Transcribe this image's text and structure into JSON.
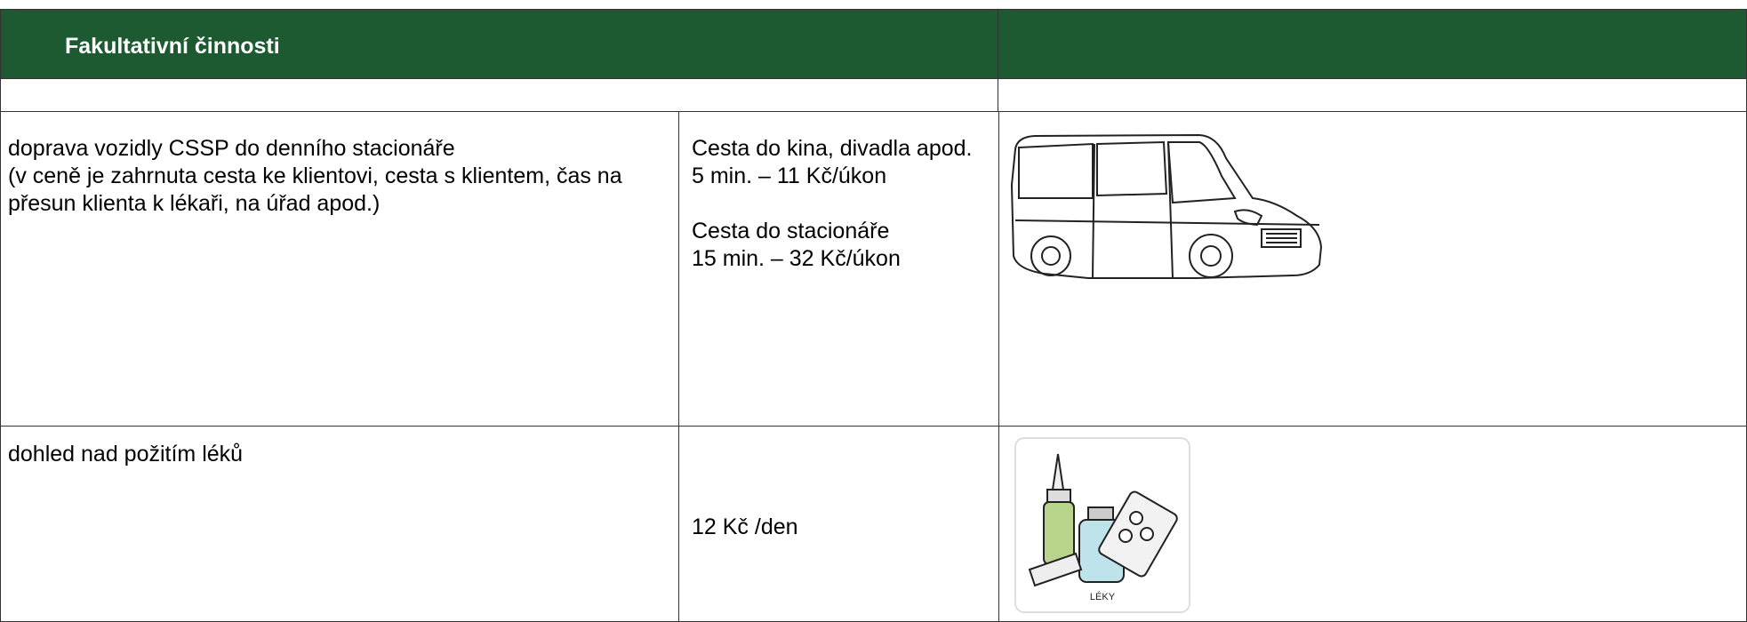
{
  "header": {
    "title": "Fakultativní činnosti"
  },
  "rows": [
    {
      "activity": [
        "doprava vozidly CSSP do denního stacionáře",
        "(v ceně je zahrnuta cesta ke klientovi, cesta s klientem, čas na přesun klienta k lékaři, na úřad apod.)"
      ],
      "prices": [
        [
          "Cesta do kina, divadla apod.",
          "5 min. – 11 Kč/úkon"
        ],
        [
          "Cesta do stacionáře",
          "15 min. – 32 Kč/úkon"
        ]
      ]
    },
    {
      "activity": [
        "dohled nad požitím léků"
      ],
      "prices": [
        [
          "12 Kč /den"
        ]
      ],
      "icon_label": "LÉKY"
    }
  ]
}
